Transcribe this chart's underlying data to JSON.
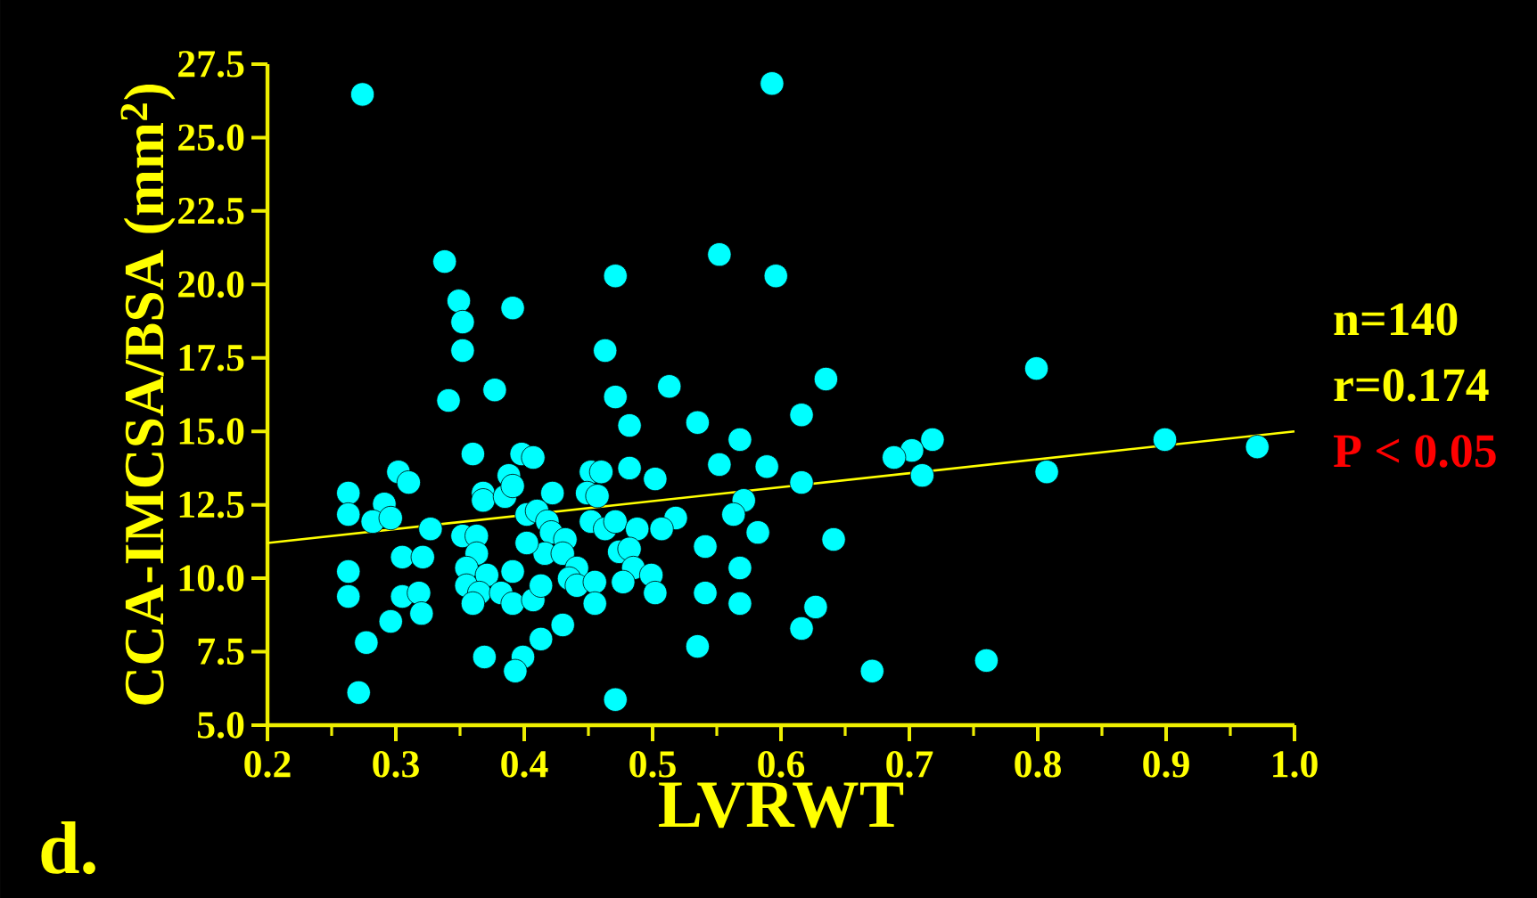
{
  "chart_data": {
    "type": "scatter",
    "xlabel": "LVRWT",
    "ylabel": "CCA-IMCSA/BSA (mm$^{2}$)",
    "xlim": [
      0.2,
      1.0
    ],
    "ylim": [
      5.0,
      27.5
    ],
    "xticks": [
      {
        "value": 0.2,
        "label": "0.2"
      },
      {
        "value": 0.25,
        "label": null
      },
      {
        "value": 0.3,
        "label": "0.3"
      },
      {
        "value": 0.35,
        "label": null
      },
      {
        "value": 0.4,
        "label": "0.4"
      },
      {
        "value": 0.45,
        "label": null
      },
      {
        "value": 0.5,
        "label": "0.5"
      },
      {
        "value": 0.55,
        "label": null
      },
      {
        "value": 0.6,
        "label": "0.6"
      },
      {
        "value": 0.65,
        "label": null
      },
      {
        "value": 0.7,
        "label": "0.7"
      },
      {
        "value": 0.75,
        "label": null
      },
      {
        "value": 0.8,
        "label": "0.8"
      },
      {
        "value": 0.85,
        "label": null
      },
      {
        "value": 0.9,
        "label": "0.9"
      },
      {
        "value": 0.95,
        "label": null
      },
      {
        "value": 1.0,
        "label": "1.0"
      }
    ],
    "yticks": [
      {
        "value": 5.0,
        "label": "5.0"
      },
      {
        "value": 7.5,
        "label": "7.5"
      },
      {
        "value": 10.0,
        "label": "10.0"
      },
      {
        "value": 12.5,
        "label": "12.5"
      },
      {
        "value": 15.0,
        "label": "15.0"
      },
      {
        "value": 17.5,
        "label": "17.5"
      },
      {
        "value": 20.0,
        "label": "20.0"
      },
      {
        "value": 22.5,
        "label": "22.5"
      },
      {
        "value": 25.0,
        "label": "25.0"
      },
      {
        "value": 27.5,
        "label": "27.5"
      }
    ],
    "series": [
      {
        "color": "#00ffff",
        "marker": "circle",
        "x": [
          0.274,
          0.338,
          0.349,
          0.352,
          0.352,
          0.391,
          0.341,
          0.377,
          0.471,
          0.463,
          0.471,
          0.36,
          0.398,
          0.407,
          0.302,
          0.31,
          0.263,
          0.263,
          0.291,
          0.282,
          0.296,
          0.327,
          0.368,
          0.368,
          0.388,
          0.385,
          0.391,
          0.422,
          0.402,
          0.41,
          0.418,
          0.421,
          0.432,
          0.416,
          0.43,
          0.402,
          0.352,
          0.363,
          0.363,
          0.305,
          0.321,
          0.263,
          0.263,
          0.305,
          0.318,
          0.32,
          0.296,
          0.277,
          0.271,
          0.355,
          0.355,
          0.371,
          0.365,
          0.36,
          0.391,
          0.382,
          0.391,
          0.407,
          0.413,
          0.441,
          0.435,
          0.441,
          0.455,
          0.455,
          0.43,
          0.413,
          0.369,
          0.399,
          0.393,
          0.471,
          0.452,
          0.46,
          0.449,
          0.457,
          0.452,
          0.463,
          0.471,
          0.593,
          0.552,
          0.596,
          0.513,
          0.635,
          0.482,
          0.535,
          0.616,
          0.568,
          0.718,
          0.702,
          0.688,
          0.71,
          0.482,
          0.502,
          0.552,
          0.589,
          0.616,
          0.571,
          0.563,
          0.582,
          0.518,
          0.507,
          0.488,
          0.541,
          0.641,
          0.474,
          0.482,
          0.485,
          0.477,
          0.499,
          0.502,
          0.568,
          0.541,
          0.568,
          0.627,
          0.616,
          0.535,
          0.671,
          0.799,
          0.807,
          0.899,
          0.971,
          0.76
        ],
        "values": [
          26.47,
          20.78,
          19.44,
          18.72,
          17.75,
          19.2,
          16.05,
          16.41,
          20.29,
          17.75,
          16.17,
          14.23,
          14.23,
          14.11,
          13.62,
          13.26,
          12.9,
          12.17,
          12.53,
          11.93,
          12.05,
          11.68,
          12.9,
          12.65,
          13.5,
          12.78,
          13.14,
          12.9,
          12.17,
          12.29,
          11.93,
          11.56,
          11.32,
          10.84,
          10.84,
          11.2,
          11.44,
          11.44,
          10.84,
          10.72,
          10.72,
          10.23,
          9.38,
          9.38,
          9.5,
          8.8,
          8.53,
          7.81,
          6.11,
          10.35,
          9.75,
          10.11,
          9.5,
          9.14,
          10.23,
          9.5,
          9.14,
          9.26,
          9.75,
          10.35,
          9.99,
          9.75,
          9.87,
          9.14,
          8.41,
          7.93,
          7.32,
          7.32,
          6.84,
          5.87,
          13.62,
          13.62,
          12.9,
          12.8,
          11.93,
          11.68,
          11.93,
          26.84,
          21.02,
          20.29,
          16.53,
          16.78,
          15.2,
          15.3,
          15.56,
          14.72,
          14.72,
          14.35,
          14.11,
          13.5,
          13.75,
          13.38,
          13.87,
          13.8,
          13.26,
          12.65,
          12.17,
          11.56,
          12.05,
          11.68,
          11.68,
          11.08,
          11.32,
          10.9,
          11.0,
          10.35,
          9.87,
          10.11,
          9.5,
          10.35,
          9.5,
          9.14,
          9.02,
          8.29,
          7.68,
          6.84,
          17.14,
          13.62,
          14.72,
          14.47,
          7.2
        ]
      },
      {
        "type": "line",
        "color": "#ffff00",
        "x": [
          0.2,
          1.0
        ],
        "values": [
          11.2,
          15.0
        ]
      }
    ],
    "annotations": [
      "d.",
      "n=140",
      "r=0.174",
      "P < 0.05"
    ]
  }
}
